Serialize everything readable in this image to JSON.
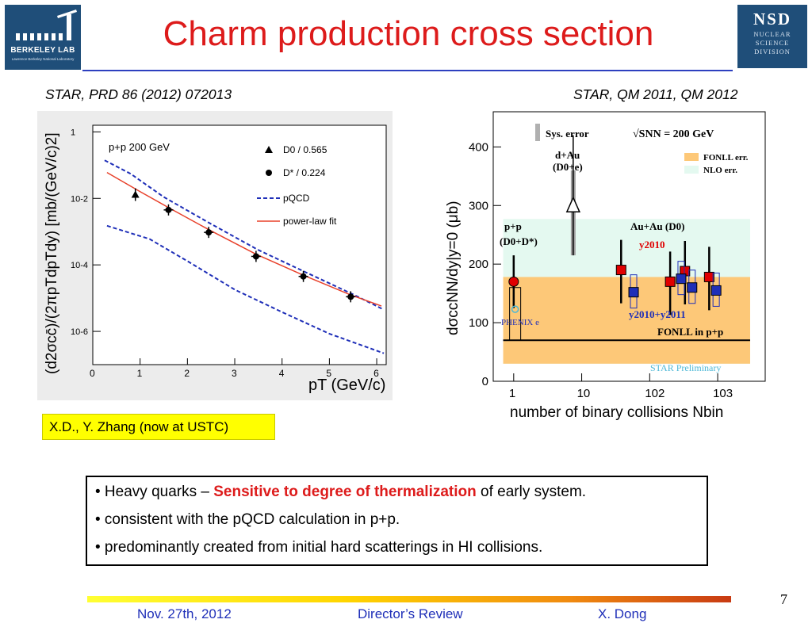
{
  "slide": {
    "title": "Charm production cross section",
    "left_reference": "STAR, PRD 86 (2012) 072013",
    "right_reference": "STAR, QM 2011, QM 2012",
    "credit": "X.D., Y. Zhang (now at USTC)",
    "bullets": {
      "b1_prefix": "• Heavy quarks – ",
      "b1_highlight": "Sensitive to degree of thermalization",
      "b1_suffix": " of early system.",
      "b2": "• consistent with the pQCD calculation in p+p.",
      "b3": "• predominantly created from initial hard scatterings in HI collisions."
    },
    "footer": {
      "date": "Nov. 27th, 2012",
      "event": "Director’s Review",
      "author": "X. Dong",
      "page": "7"
    },
    "logos": {
      "left_name": "BERKELEY LAB",
      "left_sub": "Lawrence Berkeley National Laboratory",
      "right_name": "NSD",
      "right_line1": "NUCLEAR",
      "right_line2": "SCIENCE",
      "right_line3": "DIVISION"
    },
    "colors": {
      "title": "#dd1b1b",
      "footer_text": "#1f2fb8",
      "credit_bg": "#ffff00",
      "fonll_band": "#fdc878",
      "nlo_band": "#e4f9f0"
    }
  },
  "chart_data": [
    {
      "type": "scatter",
      "title": "",
      "xlabel": "pT (GeV/c)",
      "ylabel": "(d2σcc̄)/(2πpTdpTdy) [mb/(GeV/c)2]",
      "x_range": [
        0,
        6.2
      ],
      "y_range_log10": [
        -7,
        0.2
      ],
      "y_scale": "log",
      "legend_title": "p+p 200 GeV",
      "x_ticks": [
        "0",
        "1",
        "2",
        "3",
        "4",
        "5",
        "6"
      ],
      "y_ticks": [
        "1",
        "10-2",
        "10-4",
        "10-6"
      ],
      "series": [
        {
          "name": "D0 / 0.565",
          "marker": "triangle",
          "points": [
            [
              0.9,
              0.013
            ]
          ]
        },
        {
          "name": "D* / 0.224",
          "marker": "circle",
          "points": [
            [
              1.6,
              0.0045
            ],
            [
              2.45,
              0.00095
            ],
            [
              3.45,
              0.00018
            ],
            [
              4.45,
              4.5e-05
            ],
            [
              5.45,
              1.1e-05
            ]
          ]
        },
        {
          "name": "pQCD",
          "style": "dashed",
          "color": "#1f2fb8",
          "curves": [
            [
              [
                0.25,
                0.14
              ],
              [
                0.8,
                0.055
              ],
              [
                1.5,
                0.011
              ],
              [
                2.5,
                0.0017
              ],
              [
                3.5,
                0.00028
              ],
              [
                4.5,
                6e-05
              ],
              [
                5.5,
                1.3e-05
              ],
              [
                6.15,
                4.5e-06
              ]
            ],
            [
              [
                0.3,
                0.0015
              ],
              [
                0.8,
                0.0009
              ],
              [
                1.2,
                0.0006
              ],
              [
                2.0,
                0.00013
              ],
              [
                3.0,
                1.8e-05
              ],
              [
                4.0,
                3.8e-06
              ],
              [
                5.0,
                8.5e-07
              ],
              [
                6.15,
                2.2e-07
              ]
            ]
          ]
        },
        {
          "name": "power-law fit",
          "style": "solid",
          "color": "#e8402a",
          "curve": [
            [
              0.3,
              0.06
            ],
            [
              1.0,
              0.016
            ],
            [
              1.6,
              0.0053
            ],
            [
              2.45,
              0.00115
            ],
            [
              3.45,
              0.00021
            ],
            [
              4.45,
              4.9e-05
            ],
            [
              5.45,
              1.25e-05
            ],
            [
              6.1,
              5.8e-06
            ]
          ]
        }
      ]
    },
    {
      "type": "scatter",
      "title": "",
      "xlabel": "number of binary collisions Nbin",
      "ylabel": "dσccNN/dy|y=0 (μb)",
      "x_scale": "log",
      "x_range": [
        0.5,
        5000
      ],
      "y_range": [
        0,
        460
      ],
      "x_ticks": [
        "1",
        "10",
        "102",
        "103"
      ],
      "y_ticks": [
        "0",
        "100",
        "200",
        "300",
        "400"
      ],
      "legend": [
        "Sys. error",
        "√SNN = 200 GeV",
        "FONLL err.",
        "NLO err."
      ],
      "annotations": {
        "dAu_line1": "d+Au",
        "dAu_line2": "(D0+e)",
        "pp_line1": "p+p",
        "pp_line2": "(D0+D*)",
        "AuAu": "Au+Au (D0)",
        "y2010": "y2010",
        "y2010_2011": "y2010+y2011",
        "phenix": "PHENIX e",
        "fonll_pp": "FONLL in p+p",
        "preliminary": "STAR Preliminary"
      },
      "bands": {
        "fonll": [
          30,
          178
        ],
        "nlo": [
          30,
          277
        ],
        "fonll_central": 70
      },
      "series": [
        {
          "name": "p+p (D0+D*)",
          "points": [
            [
              1,
              170
            ]
          ]
        },
        {
          "name": "d+Au (D0+e)",
          "points": [
            [
              7.5,
              300
            ]
          ],
          "sys": [
            215,
            360
          ]
        },
        {
          "name": "Au+Au y2010",
          "points": [
            [
              38,
              190
            ],
            [
              200,
              170
            ],
            [
              330,
              188
            ],
            [
              750,
              178
            ]
          ]
        },
        {
          "name": "Au+Au y2010+y2011",
          "points": [
            [
              58,
              152
            ],
            [
              290,
              175
            ],
            [
              420,
              160
            ],
            [
              950,
              155
            ]
          ]
        },
        {
          "name": "PHENIX e",
          "points": [
            [
              1.05,
              123
            ]
          ]
        }
      ]
    }
  ]
}
